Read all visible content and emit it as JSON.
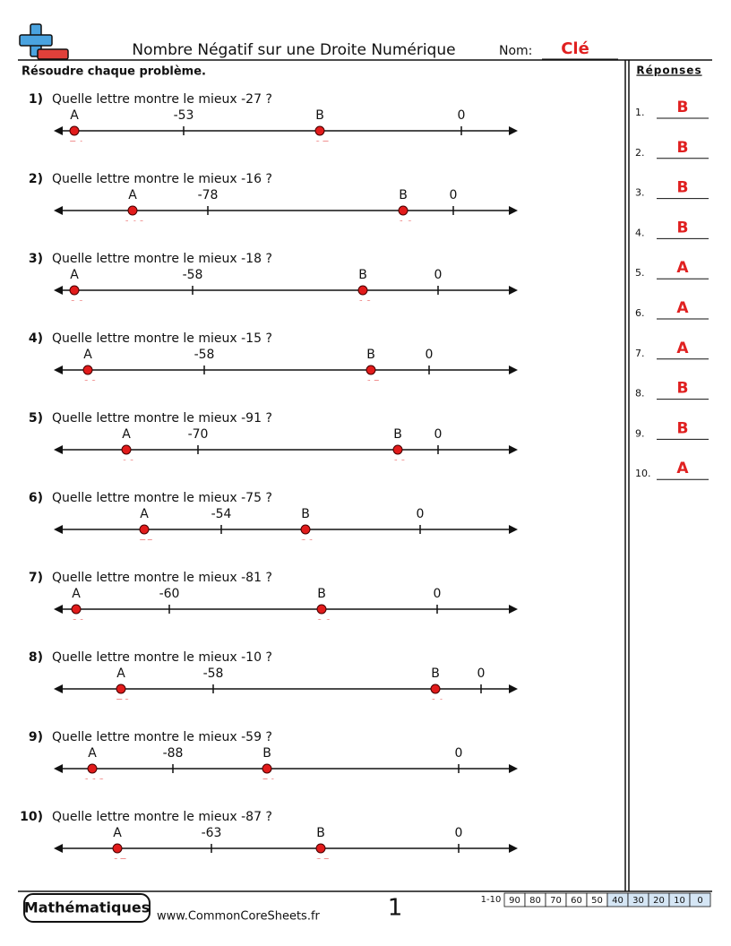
{
  "header": {
    "title": "Nombre Négatif sur une Droite Numérique",
    "name_label": "Nom:",
    "name_value": "Clé"
  },
  "instructions": "Résoudre chaque problème.",
  "answers_title": "Réponses",
  "problems": [
    {
      "number": "1)",
      "question": "Quelle lettre montre le mieux -27 ?",
      "ticks": [
        -53,
        0
      ],
      "points": [
        {
          "label": "A",
          "value": -74
        },
        {
          "label": "B",
          "value": -27
        }
      ]
    },
    {
      "number": "2)",
      "question": "Quelle lettre montre le mieux -16 ?",
      "ticks": [
        -78,
        0
      ],
      "points": [
        {
          "label": "A",
          "value": -102
        },
        {
          "label": "B",
          "value": -16
        }
      ]
    },
    {
      "number": "3)",
      "question": "Quelle lettre montre le mieux -18 ?",
      "ticks": [
        -58,
        0
      ],
      "points": [
        {
          "label": "A",
          "value": -86
        },
        {
          "label": "B",
          "value": -18
        }
      ]
    },
    {
      "number": "4)",
      "question": "Quelle lettre montre le mieux -15 ?",
      "ticks": [
        -58,
        0
      ],
      "points": [
        {
          "label": "A",
          "value": -88
        },
        {
          "label": "B",
          "value": -15
        }
      ]
    },
    {
      "number": "5)",
      "question": "Quelle lettre montre le mieux -91 ?",
      "ticks": [
        -70,
        0
      ],
      "points": [
        {
          "label": "A",
          "value": -91
        },
        {
          "label": "B",
          "value": -12
        }
      ]
    },
    {
      "number": "6)",
      "question": "Quelle lettre montre le mieux -75 ?",
      "ticks": [
        -54,
        0
      ],
      "points": [
        {
          "label": "A",
          "value": -75
        },
        {
          "label": "B",
          "value": -31
        }
      ]
    },
    {
      "number": "7)",
      "question": "Quelle lettre montre le mieux -81 ?",
      "ticks": [
        -60,
        0
      ],
      "points": [
        {
          "label": "A",
          "value": -81
        },
        {
          "label": "B",
          "value": -26
        }
      ]
    },
    {
      "number": "8)",
      "question": "Quelle lettre montre le mieux -10 ?",
      "ticks": [
        -58,
        0
      ],
      "points": [
        {
          "label": "A",
          "value": -78
        },
        {
          "label": "B",
          "value": -10
        }
      ]
    },
    {
      "number": "9)",
      "question": "Quelle lettre montre le mieux -59 ?",
      "ticks": [
        -88,
        0
      ],
      "points": [
        {
          "label": "A",
          "value": -113
        },
        {
          "label": "B",
          "value": -59
        }
      ]
    },
    {
      "number": "10)",
      "question": "Quelle lettre montre le mieux -87 ?",
      "ticks": [
        -63,
        0
      ],
      "points": [
        {
          "label": "A",
          "value": -87
        },
        {
          "label": "B",
          "value": -35
        }
      ]
    }
  ],
  "answers": [
    {
      "number": "1.",
      "letter": "B"
    },
    {
      "number": "2.",
      "letter": "B"
    },
    {
      "number": "3.",
      "letter": "B"
    },
    {
      "number": "4.",
      "letter": "B"
    },
    {
      "number": "5.",
      "letter": "A"
    },
    {
      "number": "6.",
      "letter": "A"
    },
    {
      "number": "7.",
      "letter": "A"
    },
    {
      "number": "8.",
      "letter": "B"
    },
    {
      "number": "9.",
      "letter": "B"
    },
    {
      "number": "10.",
      "letter": "A"
    }
  ],
  "footer": {
    "brand": "Mathématiques",
    "url": "www.CommonCoreSheets.fr",
    "page": "1",
    "score_range": "1-10",
    "scores": [
      90,
      80,
      70,
      60,
      50,
      40,
      30,
      20,
      10,
      0
    ]
  }
}
